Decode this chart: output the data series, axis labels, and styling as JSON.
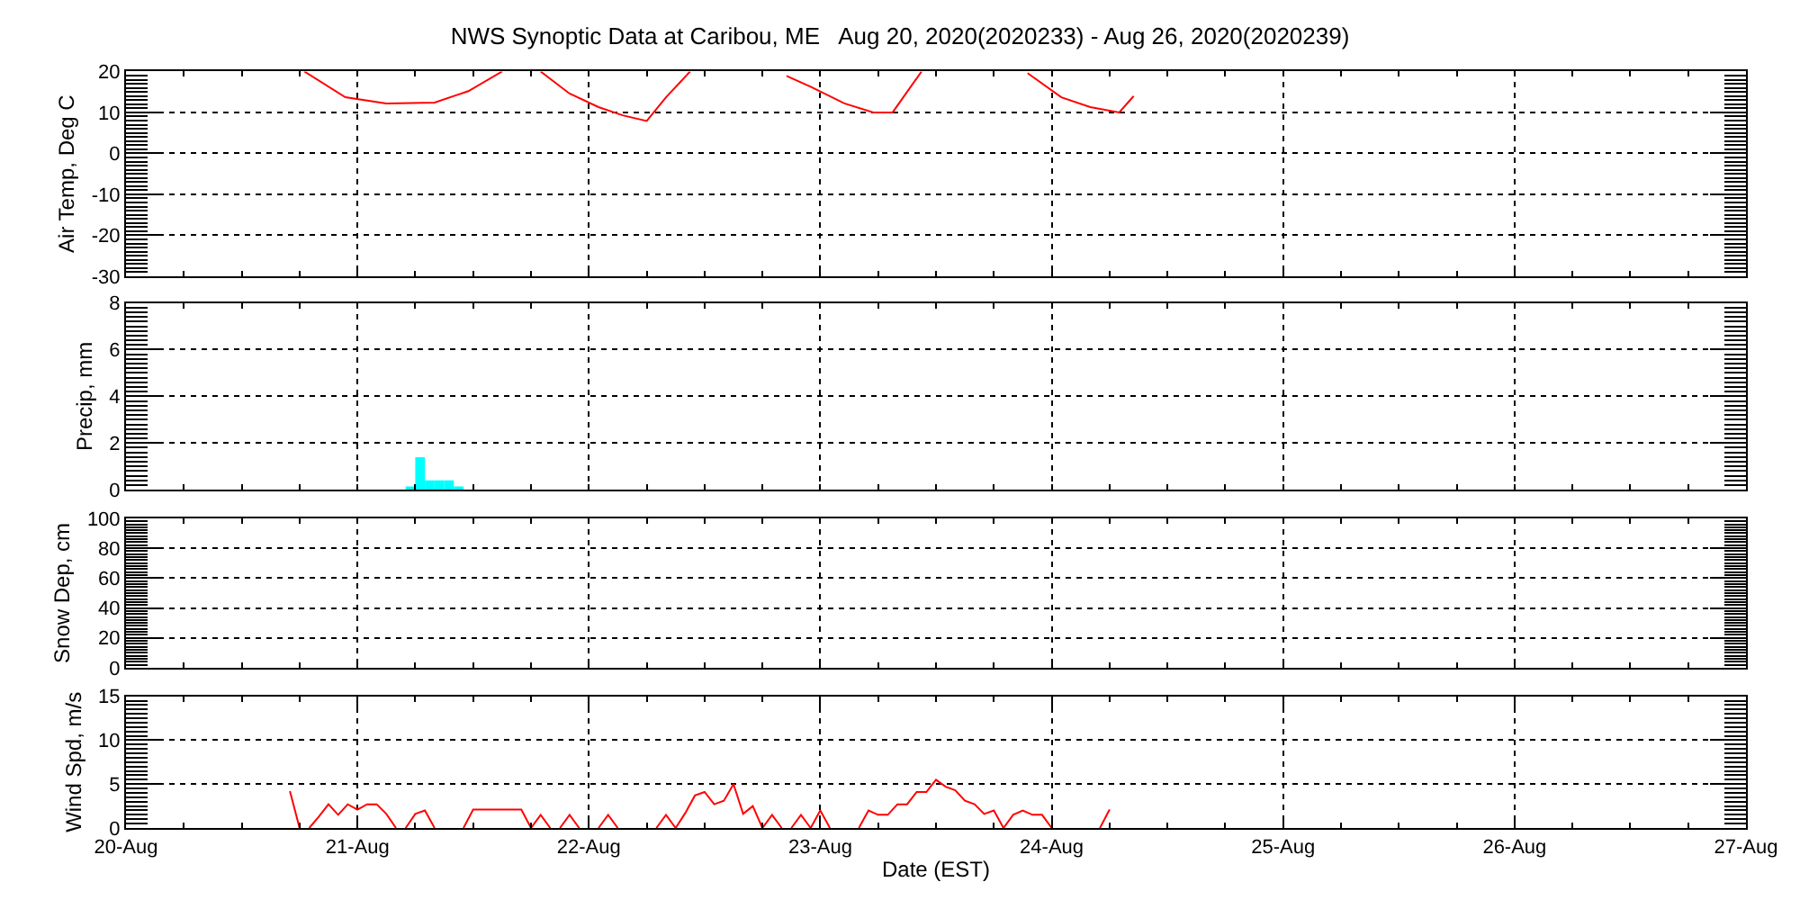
{
  "chart_data": [
    {
      "type": "line",
      "title": "NWS Synoptic Data at Caribou, ME   Aug 20, 2020(2020233) - Aug 26, 2020(2020239)",
      "ylabel": "Air Temp, Deg C",
      "xlim": [
        "2020-08-20",
        "2020-08-27"
      ],
      "xticks": [
        {
          "value": "2020-08-20",
          "label": null
        },
        {
          "value": "2020-08-21",
          "label": null
        },
        {
          "value": "2020-08-22",
          "label": null
        },
        {
          "value": "2020-08-23",
          "label": null
        },
        {
          "value": "2020-08-24",
          "label": null
        },
        {
          "value": "2020-08-25",
          "label": null
        },
        {
          "value": "2020-08-26",
          "label": null
        },
        {
          "value": "2020-08-27",
          "label": null
        }
      ],
      "ylim": [
        -30,
        20
      ],
      "yticks": [
        -30,
        -20,
        -10,
        0,
        10,
        20
      ],
      "grid": true,
      "tick_labels": "y",
      "series": [
        {
          "color": "#ff0000",
          "x": [
            "2020-08-20T18:30",
            "2020-08-20T22:45",
            "2020-08-21T03:00",
            "2020-08-21T08:00",
            "2020-08-21T11:30",
            "2020-08-21T15:00",
            "2020-08-21T17:00",
            "2020-08-21T19:00",
            "2020-08-21T22:00",
            "2020-08-22T01:00",
            "2020-08-22T03:30",
            "2020-08-22T06:00",
            "2020-08-22T08:00",
            "2020-08-22T10:30",
            "2020-08-22T15:00",
            "2020-08-22T20:30",
            "2020-08-22T23:00",
            "2020-08-23T02:30",
            "2020-08-23T05:30",
            "2020-08-23T07:30",
            "2020-08-23T10:30",
            "2020-08-23T16:00",
            "2020-08-23T21:30",
            "2020-08-24T01:00",
            "2020-08-24T04:00",
            "2020-08-24T07:00",
            "2020-08-24T08:30"
          ],
          "values": [
            20,
            13.7,
            12.2,
            12.4,
            15.2,
            20,
            null,
            20,
            14.6,
            11.3,
            9.3,
            7.9,
            13.7,
            20,
            null,
            18.9,
            16.3,
            12.2,
            10,
            10,
            20,
            null,
            19.6,
            13.7,
            11.3,
            10,
            14
          ]
        }
      ]
    },
    {
      "type": "bar",
      "ylabel": "Precip, mm",
      "xlim": [
        "2020-08-20",
        "2020-08-27"
      ],
      "xticks": [
        {
          "value": "2020-08-20",
          "label": null
        },
        {
          "value": "2020-08-21",
          "label": null
        },
        {
          "value": "2020-08-22",
          "label": null
        },
        {
          "value": "2020-08-23",
          "label": null
        },
        {
          "value": "2020-08-24",
          "label": null
        },
        {
          "value": "2020-08-25",
          "label": null
        },
        {
          "value": "2020-08-26",
          "label": null
        },
        {
          "value": "2020-08-27",
          "label": null
        }
      ],
      "ylim": [
        0,
        8
      ],
      "yticks": [
        0,
        2,
        4,
        6,
        8
      ],
      "grid": true,
      "tick_labels": "y",
      "series": [
        {
          "color": "#00ffff",
          "x": [
            "2020-08-21T05:30",
            "2020-08-21T06:30",
            "2020-08-21T07:30",
            "2020-08-21T08:30",
            "2020-08-21T09:30",
            "2020-08-21T10:30"
          ],
          "values": [
            0.1,
            1.4,
            0.4,
            0.4,
            0.4,
            0.1
          ]
        }
      ]
    },
    {
      "type": "line",
      "ylabel": "Snow Dep, cm",
      "xlim": [
        "2020-08-20",
        "2020-08-27"
      ],
      "xticks": [
        {
          "value": "2020-08-20",
          "label": null
        },
        {
          "value": "2020-08-21",
          "label": null
        },
        {
          "value": "2020-08-22",
          "label": null
        },
        {
          "value": "2020-08-23",
          "label": null
        },
        {
          "value": "2020-08-24",
          "label": null
        },
        {
          "value": "2020-08-25",
          "label": null
        },
        {
          "value": "2020-08-26",
          "label": null
        },
        {
          "value": "2020-08-27",
          "label": null
        }
      ],
      "ylim": [
        0,
        100
      ],
      "yticks": [
        0,
        20,
        40,
        60,
        80,
        100
      ],
      "grid": true,
      "tick_labels": "y"
    },
    {
      "type": "line",
      "ylabel": "Wind Spd, m/s",
      "xlabel": "Date (EST)",
      "xlim": [
        "2020-08-20",
        "2020-08-27"
      ],
      "xticks": [
        {
          "value": "2020-08-20",
          "label": "20-Aug"
        },
        {
          "value": "2020-08-21",
          "label": "21-Aug"
        },
        {
          "value": "2020-08-22",
          "label": "22-Aug"
        },
        {
          "value": "2020-08-23",
          "label": "23-Aug"
        },
        {
          "value": "2020-08-24",
          "label": "24-Aug"
        },
        {
          "value": "2020-08-25",
          "label": "25-Aug"
        },
        {
          "value": "2020-08-26",
          "label": "26-Aug"
        },
        {
          "value": "2020-08-27",
          "label": "27-Aug"
        }
      ],
      "ylim": [
        0,
        15
      ],
      "yticks": [
        0,
        5,
        10,
        15
      ],
      "grid": true,
      "series": [
        {
          "color": "#ff0000",
          "x": [
            "2020-08-20T17:00",
            "2020-08-20T18:00",
            "2020-08-20T18:30",
            "2020-08-20T19:00",
            "2020-08-20T20:00",
            "2020-08-20T21:00",
            "2020-08-20T22:00",
            "2020-08-20T23:00",
            "2020-08-21T00:00",
            "2020-08-21T01:00",
            "2020-08-21T02:00",
            "2020-08-21T03:00",
            "2020-08-21T04:00",
            "2020-08-21T04:30",
            "2020-08-21T05:00",
            "2020-08-21T06:00",
            "2020-08-21T07:00",
            "2020-08-21T08:00",
            "2020-08-21T09:00",
            "2020-08-21T11:00",
            "2020-08-21T12:00",
            "2020-08-21T17:00",
            "2020-08-21T18:00",
            "2020-08-21T19:00",
            "2020-08-21T20:00",
            "2020-08-21T20:30",
            "2020-08-21T21:00",
            "2020-08-21T22:00",
            "2020-08-21T23:00",
            "2020-08-22T00:00",
            "2020-08-22T01:00",
            "2020-08-22T02:00",
            "2020-08-22T03:00",
            "2020-08-22T05:00",
            "2020-08-22T07:00",
            "2020-08-22T08:00",
            "2020-08-22T09:00",
            "2020-08-22T10:00",
            "2020-08-22T11:00",
            "2020-08-22T12:00",
            "2020-08-22T13:00",
            "2020-08-22T14:00",
            "2020-08-22T15:00",
            "2020-08-22T16:00",
            "2020-08-22T17:00",
            "2020-08-22T18:00",
            "2020-08-22T19:00",
            "2020-08-22T20:00",
            "2020-08-22T20:30",
            "2020-08-22T21:00",
            "2020-08-22T22:00",
            "2020-08-22T23:00",
            "2020-08-23T00:00",
            "2020-08-23T01:00",
            "2020-08-23T02:00",
            "2020-08-23T04:00",
            "2020-08-23T05:00",
            "2020-08-23T06:00",
            "2020-08-23T07:00",
            "2020-08-23T08:00",
            "2020-08-23T09:00",
            "2020-08-23T10:00",
            "2020-08-23T11:00",
            "2020-08-23T12:00",
            "2020-08-23T13:00",
            "2020-08-23T14:00",
            "2020-08-23T15:00",
            "2020-08-23T16:00",
            "2020-08-23T17:00",
            "2020-08-23T18:00",
            "2020-08-23T19:00",
            "2020-08-23T20:00",
            "2020-08-23T21:00",
            "2020-08-23T22:00",
            "2020-08-23T23:00",
            "2020-08-24T00:00",
            "2020-08-24T02:00",
            "2020-08-24T05:00",
            "2020-08-24T06:00"
          ],
          "values": [
            4.2,
            0,
            null,
            0,
            1.3,
            2.7,
            1.5,
            2.7,
            2.1,
            2.7,
            2.7,
            1.6,
            0,
            null,
            0,
            1.6,
            2.0,
            0,
            null,
            0,
            2.1,
            2.1,
            0,
            1.5,
            0,
            null,
            0,
            1.5,
            0,
            null,
            0,
            1.5,
            0,
            null,
            0,
            1.5,
            0,
            1.7,
            3.7,
            4.1,
            2.7,
            3.1,
            5.0,
            1.6,
            2.5,
            0,
            1.5,
            0,
            null,
            0,
            1.5,
            0,
            2.0,
            0,
            null,
            0,
            2.0,
            1.5,
            1.5,
            2.7,
            2.7,
            4.1,
            4.1,
            5.5,
            4.7,
            4.3,
            3.1,
            2.7,
            1.6,
            2.0,
            0,
            1.5,
            2.0,
            1.5,
            1.5,
            0,
            null,
            0,
            2.1
          ]
        }
      ]
    }
  ]
}
